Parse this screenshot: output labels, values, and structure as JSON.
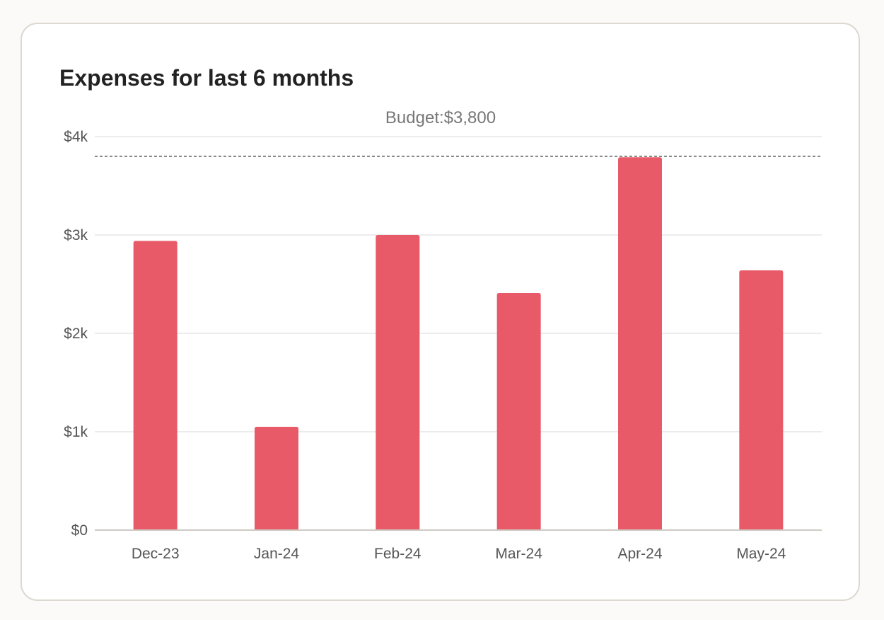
{
  "chart_data": {
    "type": "bar",
    "title": "Expenses for last 6 months",
    "categories": [
      "Dec-23",
      "Jan-24",
      "Feb-24",
      "Mar-24",
      "Apr-24",
      "May-24"
    ],
    "values": [
      2940,
      1050,
      3000,
      2410,
      3790,
      2640
    ],
    "yticks": [
      0,
      1000,
      2000,
      3000,
      4000
    ],
    "ytick_labels": [
      "$0",
      "$1k",
      "$2k",
      "$3k",
      "$4k"
    ],
    "ylim": [
      0,
      4000
    ],
    "xlabel": "",
    "ylabel": "",
    "grid": true,
    "reference_line": {
      "value": 3800,
      "label": "Budget:$3,800",
      "style": "dashed"
    },
    "colors": {
      "bar": "#e85a67",
      "grid": "#e6e6e6",
      "axis": "#cfcac2",
      "reference_line": "#555555"
    }
  }
}
